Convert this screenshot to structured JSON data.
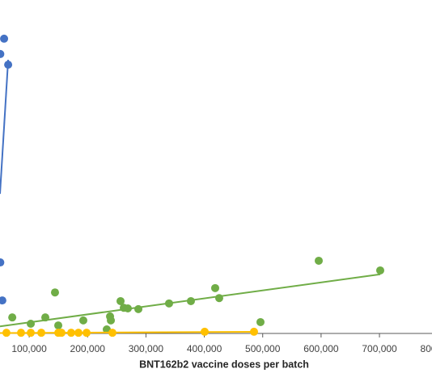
{
  "chart_data": {
    "type": "scatter",
    "x_label": "BNT162b2 vaccine doses per batch",
    "xlim": [
      50000,
      790000
    ],
    "xticks": [
      {
        "value": 100000,
        "label": "100,000"
      },
      {
        "value": 200000,
        "label": "200,000"
      },
      {
        "value": 300000,
        "label": "300,000"
      },
      {
        "value": 400000,
        "label": "400,000"
      },
      {
        "value": 500000,
        "label": "500,000"
      },
      {
        "value": 600000,
        "label": "600,000"
      },
      {
        "value": 700000,
        "label": "700,000"
      },
      {
        "value": 800000,
        "label": "800,000"
      }
    ],
    "ylim": [
      0,
      100
    ],
    "trendline": true,
    "series": [
      {
        "color": "#4472c4",
        "x": [
          57000,
          50500,
          64000,
          50500,
          54000
        ],
        "values": [
          88.4,
          83.8,
          80.6,
          21.3,
          9.9
        ]
      },
      {
        "color": "#70ad47",
        "x": [
          71000,
          102700,
          127600,
          144200,
          149800,
          192700,
          232900,
          238500,
          239900,
          256500,
          262000,
          269000,
          287000,
          339600,
          377000,
          418600,
          425500,
          496200,
          596000,
          701300
        ],
        "values": [
          4.8,
          2.9,
          4.8,
          12.3,
          2.4,
          3.9,
          1.2,
          5.1,
          3.9,
          9.7,
          7.7,
          7.5,
          7.3,
          9.0,
          9.7,
          13.6,
          10.6,
          3.4,
          21.8,
          18.9
        ]
      },
      {
        "color": "#ffc000",
        "x": [
          61000,
          86000,
          102700,
          120700,
          149800,
          155300,
          171900,
          184400,
          198300,
          242600,
          400600,
          485100
        ],
        "values": [
          0.2,
          0.2,
          0.2,
          0.2,
          0.2,
          0.2,
          0.2,
          0.2,
          0.2,
          0.2,
          0.5,
          0.5
        ]
      }
    ]
  }
}
